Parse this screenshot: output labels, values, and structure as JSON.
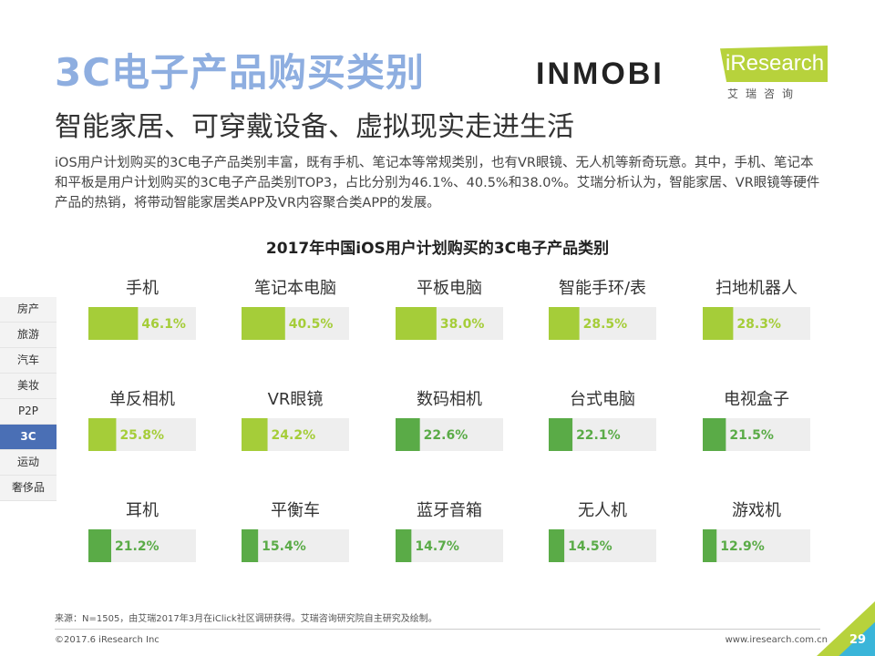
{
  "header": {
    "title": "3C电子产品购买类别",
    "subtitle": "智能家居、可穿戴设备、虚拟现实走进生活",
    "description": "iOS用户计划购买的3C电子产品类别丰富，既有手机、笔记本等常规类别，也有VR眼镜、无人机等新奇玩意。其中，手机、笔记本和平板是用户计划购买的3C电子产品类别TOP3，占比分别为46.1%、40.5%和38.0%。艾瑞分析认为，智能家居、VR眼镜等硬件产品的热销，将带动智能家居类APP及VR内容聚合类APP的发展。"
  },
  "logos": {
    "inmobi": "INMOBI",
    "iresearch": "iResearch",
    "iresearch_cn": "艾瑞咨询"
  },
  "sidebar": {
    "items": [
      {
        "label": "房产"
      },
      {
        "label": "旅游"
      },
      {
        "label": "汽车"
      },
      {
        "label": "美妆"
      },
      {
        "label": "P2P"
      },
      {
        "label": "3C"
      },
      {
        "label": "运动"
      },
      {
        "label": "奢侈品"
      }
    ],
    "active_index": 5
  },
  "colors": {
    "light_green": "#a5cd39",
    "dark_green": "#5aab47",
    "track": "#eeeeee",
    "title_blue": "#8eaee0"
  },
  "chart_data": {
    "type": "bar",
    "title": "2017年中国iOS用户计划购买的3C电子产品类别",
    "orientation": "horizontal",
    "layout": "grid 3x5",
    "xlim": [
      0,
      100
    ],
    "unit": "%",
    "categories": [
      "手机",
      "笔记本电脑",
      "平板电脑",
      "智能手环/表",
      "扫地机器人",
      "单反相机",
      "VR眼镜",
      "数码相机",
      "台式电脑",
      "电视盒子",
      "耳机",
      "平衡车",
      "蓝牙音箱",
      "无人机",
      "游戏机"
    ],
    "values": [
      46.1,
      40.5,
      38.0,
      28.5,
      28.3,
      25.8,
      24.2,
      22.6,
      22.1,
      21.5,
      21.2,
      15.4,
      14.7,
      14.5,
      12.9
    ],
    "value_labels": [
      "46.1%",
      "40.5%",
      "38.0%",
      "28.5%",
      "28.3%",
      "25.8%",
      "24.2%",
      "22.6%",
      "22.1%",
      "21.5%",
      "21.2%",
      "15.4%",
      "14.7%",
      "14.5%",
      "12.9%"
    ]
  },
  "footer": {
    "source": "来源：N=1505，由艾瑞2017年3月在iClick社区调研获得。艾瑞咨询研究院自主研究及绘制。",
    "copyright": "©2017.6 iResearch Inc",
    "url": "www.iresearch.com.cn",
    "page_number": "29"
  }
}
